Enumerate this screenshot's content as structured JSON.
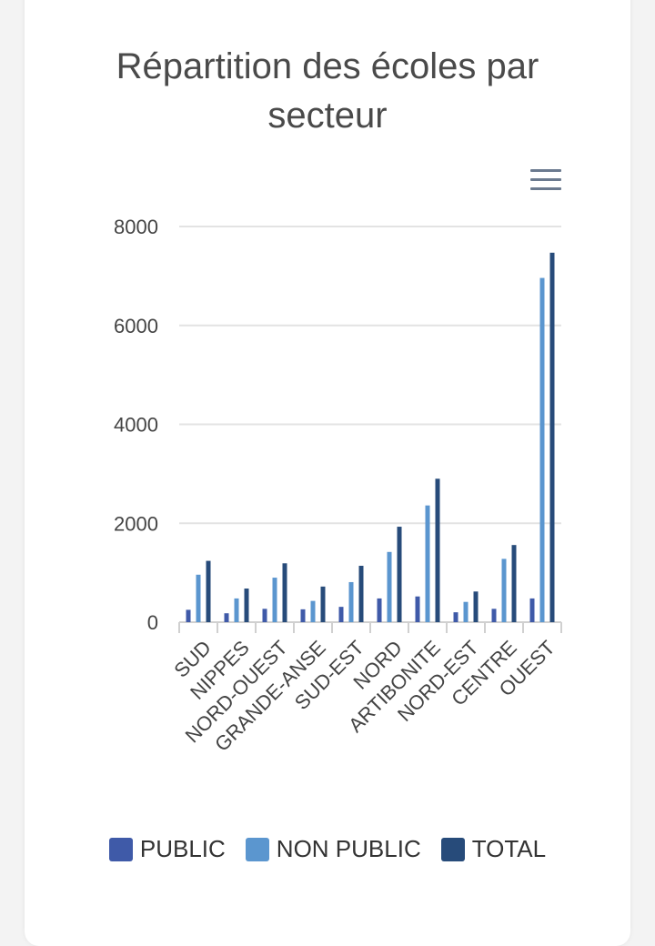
{
  "chart_data": {
    "type": "bar",
    "title": "Répartition des écoles par secteur",
    "xlabel": "",
    "ylabel": "",
    "ylim": [
      0,
      8000
    ],
    "yticks": [
      "0",
      "2000",
      "4000",
      "6000",
      "8000"
    ],
    "grid": true,
    "legend_position": "bottom",
    "categories": [
      "SUD",
      "NIPPES",
      "NORD-OUEST",
      "GRANDE-ANSE",
      "SUD-EST",
      "NORD",
      "ARTIBONITE",
      "NORD-EST",
      "CENTRE",
      "OUEST"
    ],
    "series": [
      {
        "name": "PUBLIC",
        "color": "#3f5aa8",
        "values": [
          250,
          180,
          270,
          260,
          310,
          480,
          520,
          200,
          270,
          480
        ]
      },
      {
        "name": "NON PUBLIC",
        "color": "#5b96cf",
        "values": [
          960,
          480,
          900,
          430,
          810,
          1420,
          2360,
          410,
          1280,
          6960
        ]
      },
      {
        "name": "TOTAL",
        "color": "#274b7a",
        "values": [
          1240,
          680,
          1190,
          720,
          1140,
          1930,
          2900,
          620,
          1560,
          7470
        ]
      }
    ]
  },
  "icons": {
    "menu": "hamburger-menu-icon"
  }
}
